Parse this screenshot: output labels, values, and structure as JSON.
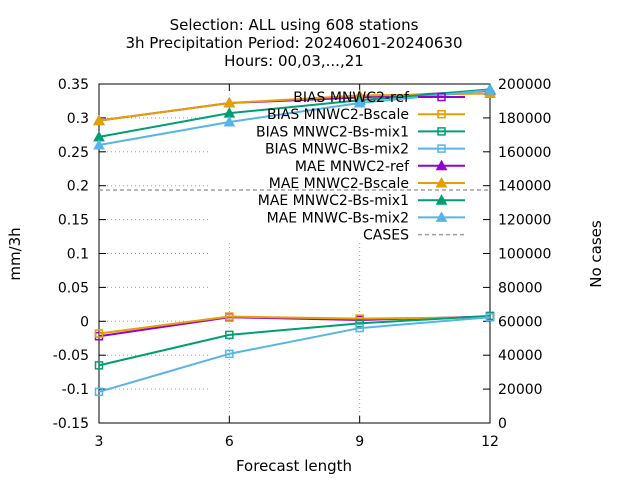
{
  "chart_data": {
    "type": "line",
    "title_lines": [
      "Selection: ALL using   608 stations",
      "3h Precipitation   Period: 20240601-20240630",
      "Hours: 00,03,...,21"
    ],
    "xlabel": "Forecast length",
    "ylabel": "mm/3h",
    "y2label": "No cases",
    "x": [
      3,
      6,
      9,
      12
    ],
    "xticks": [
      "3",
      "6",
      "9",
      "12"
    ],
    "xlim": [
      3,
      12
    ],
    "ylim": [
      -0.15,
      0.35
    ],
    "yticks": [
      "-0.15",
      "-0.1",
      "-0.05",
      "0",
      "0.05",
      "0.1",
      "0.15",
      "0.2",
      "0.25",
      "0.3",
      "0.35"
    ],
    "y2lim": [
      0,
      200000
    ],
    "y2ticks": [
      "0",
      "20000",
      "40000",
      "60000",
      "80000",
      "100000",
      "120000",
      "140000",
      "160000",
      "180000",
      "200000"
    ],
    "grid": "dotted, partial",
    "legend_position": "top-right",
    "series": [
      {
        "name": "BIAS MNWC2-ref",
        "axis": "y1",
        "marker": "square",
        "color": "#9400d3",
        "values": [
          -0.022,
          0.006,
          0.002,
          0.007
        ]
      },
      {
        "name": "BIAS MNWC2-Bscale",
        "axis": "y1",
        "marker": "square",
        "color": "#e69f00",
        "values": [
          -0.018,
          0.007,
          0.004,
          0.006
        ]
      },
      {
        "name": "BIAS MNWC2-Bs-mix1",
        "axis": "y1",
        "marker": "square",
        "color": "#009e73",
        "values": [
          -0.065,
          -0.02,
          -0.003,
          0.008
        ]
      },
      {
        "name": "BIAS MNWC-Bs-mix2",
        "axis": "y1",
        "marker": "square",
        "color": "#56b4e9",
        "values": [
          -0.104,
          -0.048,
          -0.01,
          0.006
        ]
      },
      {
        "name": "MAE MNWC2-ref",
        "axis": "y1",
        "marker": "triangle",
        "color": "#9400d3",
        "values": [
          0.296,
          0.322,
          0.33,
          0.34
        ]
      },
      {
        "name": "MAE MNWC2-Bscale",
        "axis": "y1",
        "marker": "triangle",
        "color": "#e69f00",
        "values": [
          0.296,
          0.322,
          0.333,
          0.336
        ]
      },
      {
        "name": "MAE MNWC2-Bs-mix1",
        "axis": "y1",
        "marker": "triangle",
        "color": "#009e73",
        "values": [
          0.272,
          0.307,
          0.326,
          0.342
        ]
      },
      {
        "name": "MAE MNWC-Bs-mix2",
        "axis": "y1",
        "marker": "triangle",
        "color": "#56b4e9",
        "values": [
          0.26,
          0.294,
          0.322,
          0.341
        ]
      },
      {
        "name": "CASES",
        "axis": "y2",
        "marker": "none",
        "dash": true,
        "color": "#a0a0a0",
        "values": [
          137500,
          137500,
          137500,
          137500
        ]
      }
    ]
  }
}
